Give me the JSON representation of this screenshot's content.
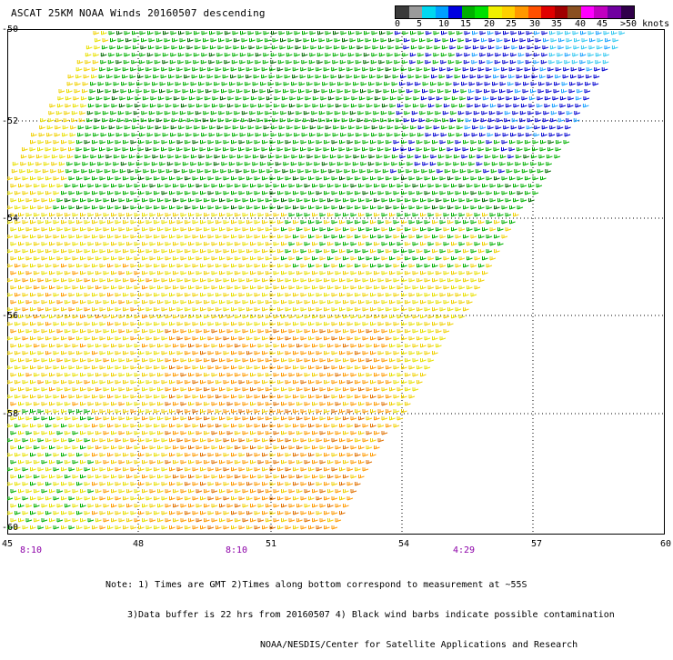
{
  "title": "ASCAT 25KM NOAA Winds 20160507 descending",
  "colorbar": {
    "ticks": [
      "0",
      "5",
      "10",
      "15",
      "20",
      "25",
      "30",
      "35",
      "40",
      "45",
      ">50 knots"
    ],
    "colors": [
      "#3a3a3a",
      "#9a9a9a",
      "#00d8f0",
      "#00a0ff",
      "#0000e0",
      "#00b000",
      "#00e000",
      "#f0f000",
      "#ffd000",
      "#ff9800",
      "#ff5000",
      "#e00000",
      "#a00000",
      "#8a5020",
      "#ff00ff",
      "#c000c0",
      "#7000a0",
      "#30004a"
    ]
  },
  "axes": {
    "yticks": [
      "-50",
      "-52",
      "-54",
      "-56",
      "-58",
      "-60"
    ],
    "xticks": [
      "45",
      "48",
      "51",
      "54",
      "57",
      "60"
    ],
    "times": [
      "8:10",
      "8:10",
      "4:29"
    ]
  },
  "note": {
    "line1": "Note: 1) Times are GMT 2)Times along bottom correspond to measurement at ~55S",
    "line2": "3)Data buffer is 22 hrs from 20160507 4) Black wind barbs indicate possible contamination",
    "line3": "NOAA/NESDIS/Center for Satellite Applications and Research"
  },
  "map_data": {
    "lon_range": [
      45,
      60
    ],
    "lat_range": [
      -60,
      -50
    ],
    "grid": "dotted every 3 deg lon and 2 deg lat",
    "regions": [
      {
        "area": "north-central band",
        "speed_knots": "15-20",
        "color": "#00b000"
      },
      {
        "area": "northeast corner",
        "speed_knots": "5-15",
        "color": "#0000e0"
      },
      {
        "area": "southwest and central",
        "speed_knots": "20-25",
        "color": "#f0f000"
      },
      {
        "area": "south-central",
        "speed_knots": "25-30",
        "color": "#ff9800"
      },
      {
        "area": "southwest edge",
        "speed_knots": "15-20",
        "color": "#00b000"
      }
    ]
  }
}
